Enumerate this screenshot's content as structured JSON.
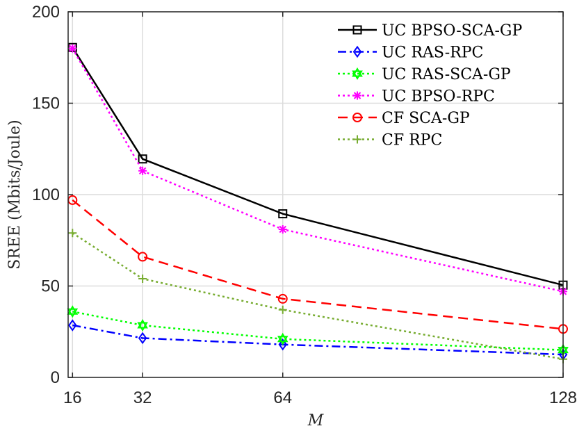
{
  "chart_data": {
    "type": "line",
    "title": "",
    "xlabel": "M",
    "ylabel": "SREE (Mbits/Joule)",
    "x": [
      16,
      32,
      64,
      128
    ],
    "xticks": [
      "16",
      "32",
      "64",
      "128"
    ],
    "xlim": [
      15,
      128
    ],
    "ylim": [
      0,
      200
    ],
    "yticks": [
      "0",
      "50",
      "100",
      "150",
      "200"
    ],
    "grid": true,
    "legend_position": "top-right",
    "series": [
      {
        "name": "UC BPSO-SCA-GP",
        "values": [
          180.5,
          119.5,
          89.5,
          50.5
        ],
        "color": "#000000",
        "dash": "solid",
        "marker": "square"
      },
      {
        "name": "UC RAS-RPC",
        "values": [
          28.5,
          21.5,
          18.0,
          12.5
        ],
        "color": "#0000ff",
        "dash": "dashdot",
        "marker": "diamond"
      },
      {
        "name": "UC RAS-SCA-GP",
        "values": [
          36.0,
          28.5,
          21.0,
          15.0
        ],
        "color": "#00ff00",
        "dash": "dotted",
        "marker": "hexagram"
      },
      {
        "name": "UC BPSO-RPC",
        "values": [
          180.0,
          113.0,
          81.0,
          47.0
        ],
        "color": "#ff00ff",
        "dash": "dotted",
        "marker": "asterisk"
      },
      {
        "name": "CF SCA-GP",
        "values": [
          97.0,
          66.0,
          43.0,
          26.5
        ],
        "color": "#ff0000",
        "dash": "dashed",
        "marker": "circle"
      },
      {
        "name": "CF RPC",
        "values": [
          79.0,
          54.0,
          37.0,
          10.0
        ],
        "color": "#77ac30",
        "dash": "dotted",
        "marker": "plus"
      }
    ]
  }
}
